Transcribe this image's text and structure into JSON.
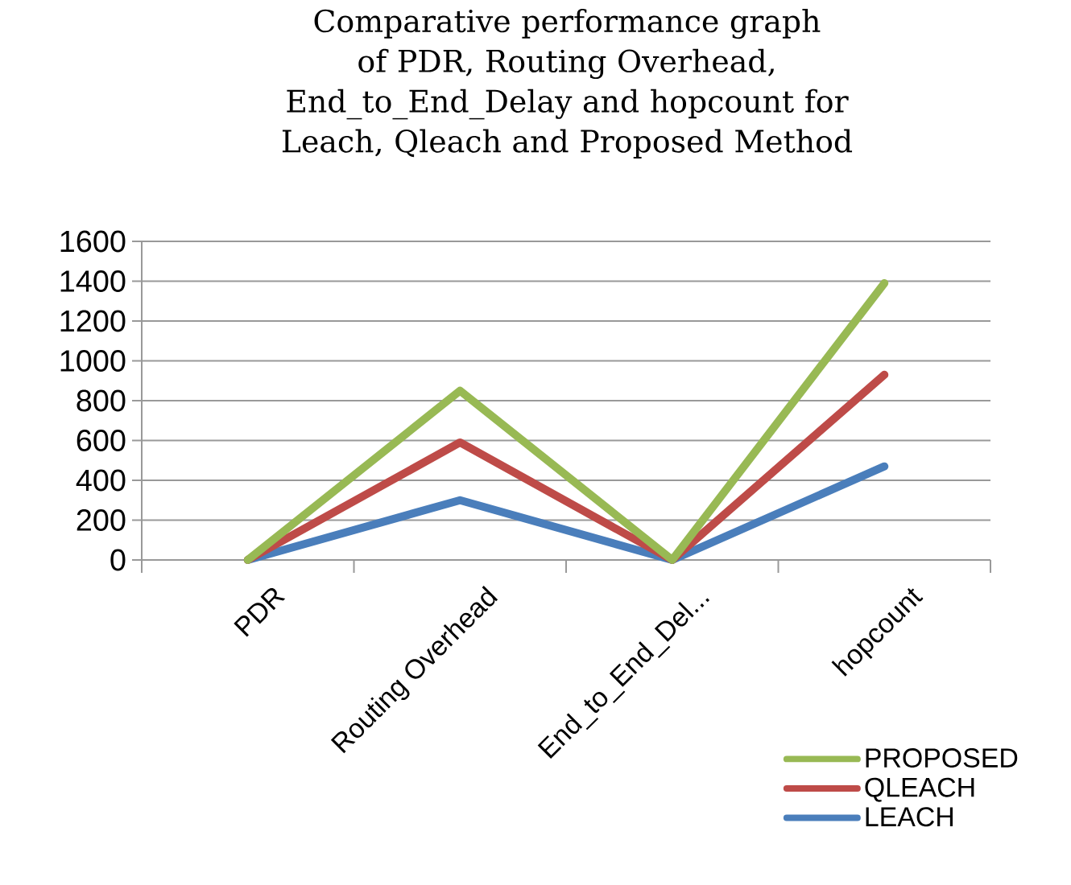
{
  "chart_data": {
    "type": "line",
    "title": "Comparative performance graph of PDR, Routing Overhead, End_to_End_Delay and hopcount for Leach, Qleach and Proposed Method",
    "categories": [
      "PDR",
      "Routing Overhead",
      "End_to_End_Del...",
      "hopcount"
    ],
    "series": [
      {
        "name": "LEACH",
        "color": "#4a7ebb",
        "values": [
          0,
          300,
          0,
          470
        ]
      },
      {
        "name": "QLEACH",
        "color": "#be4b48",
        "values": [
          0,
          590,
          0,
          930
        ]
      },
      {
        "name": "PROPOSED",
        "color": "#98b954",
        "values": [
          0,
          850,
          0,
          1390
        ]
      }
    ],
    "ylim": [
      0,
      1600
    ],
    "yticks": [
      0,
      200,
      400,
      600,
      800,
      1000,
      1200,
      1400,
      1600
    ],
    "grid": "y",
    "legend": "bottom right",
    "marker": "none",
    "line_style": "solid"
  }
}
